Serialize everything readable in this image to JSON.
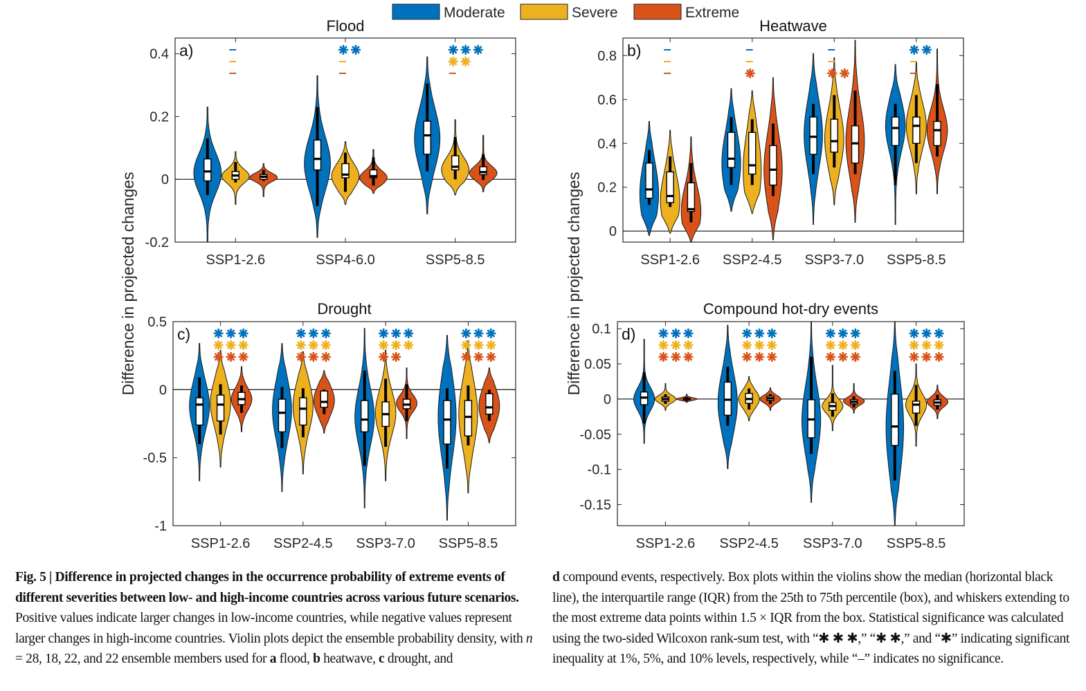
{
  "legend": {
    "position": "top-center",
    "items": [
      {
        "key": "moderate",
        "label": "Moderate",
        "color": "#0072BD"
      },
      {
        "key": "severe",
        "label": "Severe",
        "color": "#EDB120"
      },
      {
        "key": "extreme",
        "label": "Extreme",
        "color": "#D95319"
      }
    ]
  },
  "ylabel": "Difference in projected changes",
  "significance_symbols": {
    "star": "✱",
    "none": "–"
  },
  "chart_data": [
    {
      "type": "violin",
      "panel": "a)",
      "title": "Flood",
      "ylim": [
        -0.2,
        0.45
      ],
      "yticks": [
        -0.2,
        0,
        0.2,
        0.4
      ],
      "ytick_labels": [
        "-0.2",
        "0",
        "0.2",
        "0.4"
      ],
      "categories": [
        "SSP1-2.6",
        "SSP4-6.0",
        "SSP5-8.5"
      ],
      "zero_line": true,
      "series": [
        {
          "name": "Moderate",
          "stats": [
            {
              "min": -0.2,
              "whisker_low": -0.05,
              "q1": -0.005,
              "median": 0.025,
              "q3": 0.065,
              "whisker_high": 0.13,
              "max": 0.23,
              "mode": 0.02
            },
            {
              "min": -0.185,
              "whisker_low": -0.085,
              "q1": 0.03,
              "median": 0.065,
              "q3": 0.125,
              "whisker_high": 0.23,
              "max": 0.33,
              "mode": 0.05
            },
            {
              "min": -0.11,
              "whisker_low": 0.025,
              "q1": 0.08,
              "median": 0.14,
              "q3": 0.185,
              "whisker_high": 0.305,
              "max": 0.39,
              "mode": 0.13
            }
          ]
        },
        {
          "name": "Severe",
          "stats": [
            {
              "min": -0.08,
              "whisker_low": -0.01,
              "q1": 0.0,
              "median": 0.012,
              "q3": 0.025,
              "whisker_high": 0.055,
              "max": 0.088,
              "mode": 0.01
            },
            {
              "min": -0.08,
              "whisker_low": -0.04,
              "q1": 0.005,
              "median": 0.015,
              "q3": 0.05,
              "whisker_high": 0.085,
              "max": 0.12,
              "mode": 0.01
            },
            {
              "min": -0.05,
              "whisker_low": 0.0,
              "q1": 0.03,
              "median": 0.04,
              "q3": 0.075,
              "whisker_high": 0.135,
              "max": 0.19,
              "mode": 0.03
            }
          ]
        },
        {
          "name": "Extreme",
          "stats": [
            {
              "min": -0.055,
              "whisker_low": -0.005,
              "q1": 0.0,
              "median": 0.008,
              "q3": 0.015,
              "whisker_high": 0.03,
              "max": 0.05,
              "mode": 0.006
            },
            {
              "min": -0.045,
              "whisker_low": -0.02,
              "q1": 0.005,
              "median": 0.01,
              "q3": 0.03,
              "whisker_high": 0.07,
              "max": 0.095,
              "mode": 0.005
            },
            {
              "min": -0.04,
              "whisker_low": -0.002,
              "q1": 0.015,
              "median": 0.023,
              "q3": 0.04,
              "whisker_high": 0.08,
              "max": 0.14,
              "mode": 0.02
            }
          ]
        }
      ],
      "significance": [
        [
          {
            "level": "–"
          },
          {
            "level": "–"
          },
          {
            "level": "–"
          }
        ],
        [
          {
            "level": "**"
          },
          {
            "level": "–"
          },
          {
            "level": "–"
          }
        ],
        [
          {
            "level": "***"
          },
          {
            "level": "**"
          },
          {
            "level": "–"
          }
        ]
      ]
    },
    {
      "type": "violin",
      "panel": "b)",
      "title": "Heatwave",
      "ylim": [
        -0.05,
        0.88
      ],
      "yticks": [
        0,
        0.2,
        0.4,
        0.6,
        0.8
      ],
      "ytick_labels": [
        "0",
        "0.2",
        "0.4",
        "0.6",
        "0.8"
      ],
      "categories": [
        "SSP1-2.6",
        "SSP2-4.5",
        "SSP3-7.0",
        "SSP5-8.5"
      ],
      "zero_line": true,
      "series": [
        {
          "name": "Moderate",
          "stats": [
            {
              "min": -0.02,
              "whisker_low": 0.12,
              "q1": 0.15,
              "median": 0.19,
              "q3": 0.31,
              "whisker_high": 0.37,
              "max": 0.5,
              "mode": 0.17
            },
            {
              "min": 0.09,
              "whisker_low": 0.21,
              "q1": 0.29,
              "median": 0.33,
              "q3": 0.45,
              "whisker_high": 0.52,
              "max": 0.65,
              "mode": 0.31
            },
            {
              "min": 0.03,
              "whisker_low": 0.26,
              "q1": 0.35,
              "median": 0.43,
              "q3": 0.52,
              "whisker_high": 0.58,
              "max": 0.81,
              "mode": 0.44
            },
            {
              "min": 0.03,
              "whisker_low": 0.21,
              "q1": 0.39,
              "median": 0.47,
              "q3": 0.52,
              "whisker_high": 0.58,
              "max": 0.76,
              "mode": 0.48
            }
          ]
        },
        {
          "name": "Severe",
          "stats": [
            {
              "min": -0.01,
              "whisker_low": 0.11,
              "q1": 0.13,
              "median": 0.16,
              "q3": 0.27,
              "whisker_high": 0.34,
              "max": 0.46,
              "mode": 0.14
            },
            {
              "min": 0.08,
              "whisker_low": 0.21,
              "q1": 0.26,
              "median": 0.3,
              "q3": 0.45,
              "whisker_high": 0.51,
              "max": 0.64,
              "mode": 0.28
            },
            {
              "min": 0.12,
              "whisker_low": 0.29,
              "q1": 0.36,
              "median": 0.41,
              "q3": 0.51,
              "whisker_high": 0.62,
              "max": 0.79,
              "mode": 0.42
            },
            {
              "min": 0.17,
              "whisker_low": 0.31,
              "q1": 0.4,
              "median": 0.48,
              "q3": 0.52,
              "whisker_high": 0.62,
              "max": 0.77,
              "mode": 0.48
            }
          ]
        },
        {
          "name": "Extreme",
          "stats": [
            {
              "min": -0.05,
              "whisker_low": 0.04,
              "q1": 0.09,
              "median": 0.1,
              "q3": 0.22,
              "whisker_high": 0.31,
              "max": 0.43,
              "mode": 0.09
            },
            {
              "min": -0.04,
              "whisker_low": 0.16,
              "q1": 0.21,
              "median": 0.28,
              "q3": 0.39,
              "whisker_high": 0.49,
              "max": 0.7,
              "mode": 0.28
            },
            {
              "min": 0.04,
              "whisker_low": 0.26,
              "q1": 0.31,
              "median": 0.4,
              "q3": 0.48,
              "whisker_high": 0.64,
              "max": 0.87,
              "mode": 0.41
            },
            {
              "min": 0.17,
              "whisker_low": 0.34,
              "q1": 0.39,
              "median": 0.46,
              "q3": 0.5,
              "whisker_high": 0.67,
              "max": 0.83,
              "mode": 0.46
            }
          ]
        }
      ],
      "significance": [
        [
          {
            "level": "–"
          },
          {
            "level": "–"
          },
          {
            "level": "–"
          }
        ],
        [
          {
            "level": "–"
          },
          {
            "level": "–"
          },
          {
            "level": "*"
          }
        ],
        [
          {
            "level": "–"
          },
          {
            "level": "–"
          },
          {
            "level": "**"
          }
        ],
        [
          {
            "level": "**"
          },
          {
            "level": "–"
          },
          {
            "level": "–"
          }
        ]
      ]
    },
    {
      "type": "violin",
      "panel": "c)",
      "title": "Drought",
      "ylim": [
        -1,
        0.5
      ],
      "yticks": [
        -1,
        -0.5,
        0,
        0.5
      ],
      "ytick_labels": [
        "-1",
        "-0.5",
        "0",
        "0.5"
      ],
      "categories": [
        "SSP1-2.6",
        "SSP2-4.5",
        "SSP3-7.0",
        "SSP5-8.5"
      ],
      "zero_line": true,
      "series": [
        {
          "name": "Moderate",
          "stats": [
            {
              "min": -0.67,
              "whisker_low": -0.4,
              "q1": -0.26,
              "median": -0.11,
              "q3": -0.06,
              "whisker_high": 0.09,
              "max": 0.34,
              "mode": -0.12
            },
            {
              "min": -0.75,
              "whisker_low": -0.43,
              "q1": -0.31,
              "median": -0.17,
              "q3": -0.07,
              "whisker_high": 0.02,
              "max": 0.34,
              "mode": -0.15
            },
            {
              "min": -0.87,
              "whisker_low": -0.56,
              "q1": -0.31,
              "median": -0.22,
              "q3": -0.08,
              "whisker_high": 0.14,
              "max": 0.45,
              "mode": -0.2
            },
            {
              "min": -0.96,
              "whisker_low": -0.58,
              "q1": -0.4,
              "median": -0.22,
              "q3": -0.08,
              "whisker_high": 0.01,
              "max": 0.4,
              "mode": -0.2
            }
          ]
        },
        {
          "name": "Severe",
          "stats": [
            {
              "min": -0.57,
              "whisker_low": -0.33,
              "q1": -0.23,
              "median": -0.11,
              "q3": -0.04,
              "whisker_high": 0.04,
              "max": 0.29,
              "mode": -0.1
            },
            {
              "min": -0.62,
              "whisker_low": -0.35,
              "q1": -0.26,
              "median": -0.14,
              "q3": -0.06,
              "whisker_high": 0.01,
              "max": 0.28,
              "mode": -0.12
            },
            {
              "min": -0.67,
              "whisker_low": -0.42,
              "q1": -0.27,
              "median": -0.18,
              "q3": -0.09,
              "whisker_high": 0.08,
              "max": 0.29,
              "mode": -0.17
            },
            {
              "min": -0.76,
              "whisker_low": -0.41,
              "q1": -0.34,
              "median": -0.2,
              "q3": -0.08,
              "whisker_high": 0.03,
              "max": 0.36,
              "mode": -0.18
            }
          ]
        },
        {
          "name": "Extreme",
          "stats": [
            {
              "min": -0.31,
              "whisker_low": -0.17,
              "q1": -0.11,
              "median": -0.07,
              "q3": -0.02,
              "whisker_high": 0.03,
              "max": 0.17,
              "mode": -0.07
            },
            {
              "min": -0.32,
              "whisker_low": -0.18,
              "q1": -0.13,
              "median": -0.09,
              "q3": -0.01,
              "whisker_high": 0.0,
              "max": 0.14,
              "mode": -0.08
            },
            {
              "min": -0.36,
              "whisker_low": -0.23,
              "q1": -0.14,
              "median": -0.11,
              "q3": -0.07,
              "whisker_high": 0.04,
              "max": 0.16,
              "mode": -0.1
            },
            {
              "min": -0.39,
              "whisker_low": -0.23,
              "q1": -0.18,
              "median": -0.13,
              "q3": -0.03,
              "whisker_high": 0.0,
              "max": 0.16,
              "mode": -0.12
            }
          ]
        }
      ],
      "significance": [
        [
          {
            "level": "***"
          },
          {
            "level": "***"
          },
          {
            "level": "***"
          }
        ],
        [
          {
            "level": "***"
          },
          {
            "level": "***"
          },
          {
            "level": "***"
          }
        ],
        [
          {
            "level": "***"
          },
          {
            "level": "***"
          },
          {
            "level": "**"
          }
        ],
        [
          {
            "level": "***"
          },
          {
            "level": "***"
          },
          {
            "level": "***"
          }
        ]
      ]
    },
    {
      "type": "violin",
      "panel": "d)",
      "title": "Compound hot-dry events",
      "ylim": [
        -0.18,
        0.11
      ],
      "yticks": [
        -0.15,
        -0.1,
        -0.05,
        0,
        0.05,
        0.1
      ],
      "ytick_labels": [
        "-0.15",
        "-0.1",
        "-0.05",
        "0",
        "0.05",
        "0.1"
      ],
      "categories": [
        "SSP1-2.6",
        "SSP2-4.5",
        "SSP3-7.0",
        "SSP5-8.5"
      ],
      "zero_line": true,
      "series": [
        {
          "name": "Moderate",
          "stats": [
            {
              "min": -0.063,
              "whisker_low": -0.035,
              "q1": -0.008,
              "median": 0.002,
              "q3": 0.01,
              "whisker_high": 0.038,
              "max": 0.085,
              "mode": 0.0
            },
            {
              "min": -0.099,
              "whisker_low": -0.038,
              "q1": -0.023,
              "median": -0.001,
              "q3": 0.024,
              "whisker_high": 0.046,
              "max": 0.105,
              "mode": -0.005
            },
            {
              "min": -0.147,
              "whisker_low": -0.078,
              "q1": -0.055,
              "median": -0.029,
              "q3": -0.001,
              "whisker_high": 0.06,
              "max": 0.11,
              "mode": -0.03
            },
            {
              "min": -0.18,
              "whisker_low": -0.116,
              "q1": -0.066,
              "median": -0.039,
              "q3": 0.007,
              "whisker_high": 0.04,
              "max": 0.11,
              "mode": -0.04
            }
          ]
        },
        {
          "name": "Severe",
          "stats": [
            {
              "min": -0.016,
              "whisker_low": -0.007,
              "q1": -0.003,
              "median": 0.0,
              "q3": 0.003,
              "whisker_high": 0.007,
              "max": 0.022,
              "mode": 0.0
            },
            {
              "min": -0.031,
              "whisker_low": -0.015,
              "q1": -0.006,
              "median": 0.0,
              "q3": 0.008,
              "whisker_high": 0.015,
              "max": 0.032,
              "mode": 0.0
            },
            {
              "min": -0.045,
              "whisker_low": -0.025,
              "q1": -0.016,
              "median": -0.01,
              "q3": -0.005,
              "whisker_high": 0.008,
              "max": 0.048,
              "mode": -0.01
            },
            {
              "min": -0.067,
              "whisker_low": -0.038,
              "q1": -0.02,
              "median": -0.008,
              "q3": -0.003,
              "whisker_high": 0.02,
              "max": 0.05,
              "mode": -0.008
            }
          ]
        },
        {
          "name": "Extreme",
          "stats": [
            {
              "min": -0.005,
              "whisker_low": -0.003,
              "q1": -0.001,
              "median": 0.0,
              "q3": 0.001,
              "whisker_high": 0.003,
              "max": 0.007,
              "mode": 0.0
            },
            {
              "min": -0.016,
              "whisker_low": -0.007,
              "q1": -0.002,
              "median": 0.001,
              "q3": 0.004,
              "whisker_high": 0.007,
              "max": 0.016,
              "mode": 0.0
            },
            {
              "min": -0.02,
              "whisker_low": -0.012,
              "q1": -0.007,
              "median": -0.004,
              "q3": -0.001,
              "whisker_high": 0.004,
              "max": 0.022,
              "mode": -0.003
            },
            {
              "min": -0.028,
              "whisker_low": -0.015,
              "q1": -0.009,
              "median": -0.005,
              "q3": -0.001,
              "whisker_high": 0.006,
              "max": 0.02,
              "mode": -0.004
            }
          ]
        }
      ],
      "significance": [
        [
          {
            "level": "***"
          },
          {
            "level": "***"
          },
          {
            "level": "***"
          }
        ],
        [
          {
            "level": "***"
          },
          {
            "level": "***"
          },
          {
            "level": "***"
          }
        ],
        [
          {
            "level": "***"
          },
          {
            "level": "***"
          },
          {
            "level": "***"
          }
        ],
        [
          {
            "level": "***"
          },
          {
            "level": "***"
          },
          {
            "level": "***"
          }
        ]
      ]
    }
  ],
  "caption": {
    "left": {
      "bold": "Fig. 5 | Difference in projected changes in the occurrence probability of extreme events of different severities between low- and high-income countries across various future scenarios.",
      "text1": " Positive values indicate larger changes in low-income countries, while negative values represent larger changes in high-income countries. Violin plots depict the ensemble probability density, with ",
      "n_italic": "n",
      "text2": " = 28, 18, 22, and 22 ensemble members used for ",
      "a": "a",
      "a_text": " flood, ",
      "b": "b",
      "b_text": " heatwave, ",
      "c": "c",
      "c_text": " drought, and"
    },
    "right": {
      "d": "d",
      "text": " compound events, respectively. Box plots within the violins show the median (horizontal black line), the interquartile range (IQR) from the 25th to 75th percentile (box), and whiskers extending to the most extreme data points within 1.5 × IQR from the box. Statistical significance was calculated using the two-sided Wilcoxon rank-sum test, with “✱ ✱ ✱,” “✱ ✱,” and “✱” indicating significant inequality at 1%, 5%, and 10% levels, respectively, while “–” indicates no significance."
    }
  }
}
